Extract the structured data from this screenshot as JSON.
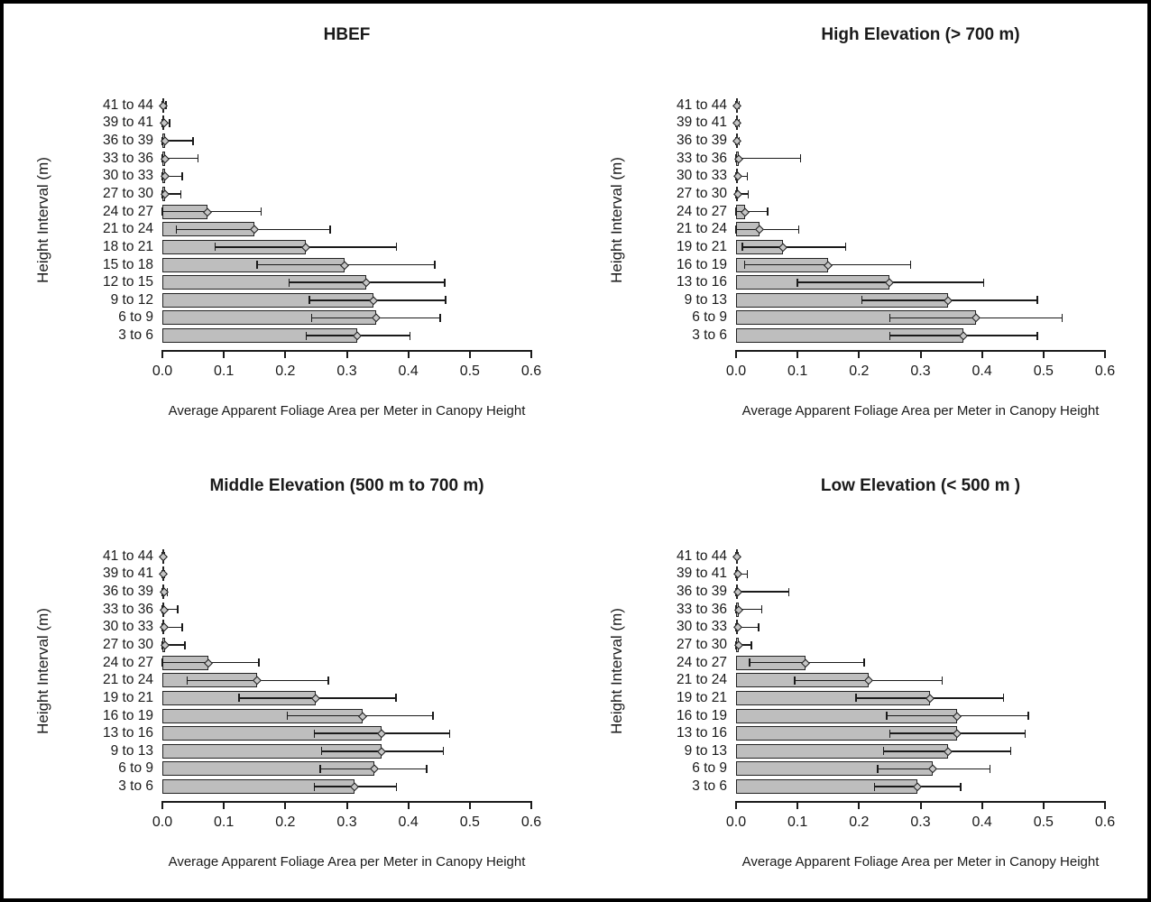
{
  "figure": {
    "xticks": [
      "0.0",
      "0.1",
      "0.2",
      "0.3",
      "0.4",
      "0.5",
      "0.6"
    ],
    "colors": {
      "bar_fill": "#bebebe",
      "bar_border": "#222222",
      "error_color": "#1a1a1a",
      "background": "#ffffff",
      "frame": "#000000"
    }
  },
  "chart_data": [
    {
      "type": "bar",
      "orientation": "horizontal",
      "title": "HBEF",
      "xlabel": "Average Apparent Foliage Area per Meter in Canopy Height",
      "ylabel": "Height Interval (m)",
      "xlim": [
        0,
        0.6
      ],
      "grid": false,
      "categories": [
        "41 to 44",
        "39 to 41",
        "36 to 39",
        "33 to 36",
        "30 to 33",
        "27 to 30",
        "24 to 27",
        "21 to 24",
        "18 to 21",
        "15 to 18",
        "12 to 15",
        "9 to 12",
        "6 to 9",
        "3 to 6"
      ],
      "values": [
        0.002,
        0.003,
        0.004,
        0.004,
        0.004,
        0.004,
        0.074,
        0.15,
        0.233,
        0.296,
        0.332,
        0.344,
        0.347,
        0.317
      ],
      "error_low": [
        0,
        0,
        0,
        0,
        0,
        0,
        0,
        0.023,
        0.086,
        0.154,
        0.206,
        0.239,
        0.243,
        0.234
      ],
      "error_high": [
        0.006,
        0.012,
        0.05,
        0.058,
        0.032,
        0.03,
        0.161,
        0.273,
        0.381,
        0.443,
        0.459,
        0.461,
        0.452,
        0.403
      ]
    },
    {
      "type": "bar",
      "orientation": "horizontal",
      "title": "High Elevation (> 700 m)",
      "xlabel": "Average Apparent Foliage Area per Meter in Canopy Height",
      "ylabel": "Height Interval (m)",
      "xlim": [
        0,
        0.6
      ],
      "grid": false,
      "categories": [
        "41 to 44",
        "39 to 41",
        "36 to 39",
        "33 to 36",
        "30 to 33",
        "27 to 30",
        "24 to 27",
        "21 to 24",
        "19 to 21",
        "16 to 19",
        "13 to 16",
        "9 to 13",
        "6 to 9",
        "3 to 6"
      ],
      "values": [
        0.002,
        0.002,
        0.002,
        0.005,
        0.003,
        0.003,
        0.015,
        0.038,
        0.077,
        0.15,
        0.25,
        0.345,
        0.39,
        0.37
      ],
      "error_low": [
        0,
        0,
        0,
        0,
        0,
        0,
        0,
        0,
        0.01,
        0.014,
        0.1,
        0.205,
        0.25,
        0.25
      ],
      "error_high": [
        0.005,
        0.005,
        0.005,
        0.105,
        0.018,
        0.02,
        0.051,
        0.102,
        0.178,
        0.284,
        0.403,
        0.49,
        0.53,
        0.49
      ]
    },
    {
      "type": "bar",
      "orientation": "horizontal",
      "title": "Middle Elevation (500 m to 700 m)",
      "xlabel": "Average Apparent Foliage Area per Meter in Canopy Height",
      "ylabel": "Height Interval (m)",
      "xlim": [
        0,
        0.6
      ],
      "grid": false,
      "categories": [
        "41 to 44",
        "39 to 41",
        "36 to 39",
        "33 to 36",
        "30 to 33",
        "27 to 30",
        "24 to 27",
        "21 to 24",
        "19 to 21",
        "16 to 19",
        "13 to 16",
        "9 to 13",
        "6 to 9",
        "3 to 6"
      ],
      "values": [
        0.002,
        0.002,
        0.003,
        0.003,
        0.003,
        0.004,
        0.075,
        0.154,
        0.25,
        0.325,
        0.357,
        0.357,
        0.345,
        0.313
      ],
      "error_low": [
        0,
        0,
        0,
        0,
        0,
        0,
        0,
        0.04,
        0.125,
        0.203,
        0.247,
        0.259,
        0.257,
        0.247
      ],
      "error_high": [
        0.004,
        0.004,
        0.008,
        0.025,
        0.032,
        0.037,
        0.157,
        0.27,
        0.38,
        0.44,
        0.467,
        0.457,
        0.43,
        0.381
      ]
    },
    {
      "type": "bar",
      "orientation": "horizontal",
      "title": "Low Elevation (< 500 m )",
      "xlabel": "Average Apparent Foliage Area per Meter in Canopy Height",
      "ylabel": "Height Interval (m)",
      "xlim": [
        0,
        0.6
      ],
      "grid": false,
      "categories": [
        "41 to 44",
        "39 to 41",
        "36 to 39",
        "33 to 36",
        "30 to 33",
        "27 to 30",
        "24 to 27",
        "21 to 24",
        "19 to 21",
        "16 to 19",
        "13 to 16",
        "9 to 13",
        "6 to 9",
        "3 to 6"
      ],
      "values": [
        0.002,
        0.003,
        0.003,
        0.005,
        0.003,
        0.004,
        0.113,
        0.215,
        0.315,
        0.36,
        0.36,
        0.345,
        0.32,
        0.295
      ],
      "error_low": [
        0,
        0,
        0,
        0,
        0,
        0,
        0.022,
        0.095,
        0.195,
        0.245,
        0.25,
        0.24,
        0.23,
        0.225
      ],
      "error_high": [
        0.004,
        0.018,
        0.086,
        0.042,
        0.037,
        0.025,
        0.208,
        0.335,
        0.435,
        0.475,
        0.47,
        0.447,
        0.413,
        0.365
      ]
    }
  ]
}
